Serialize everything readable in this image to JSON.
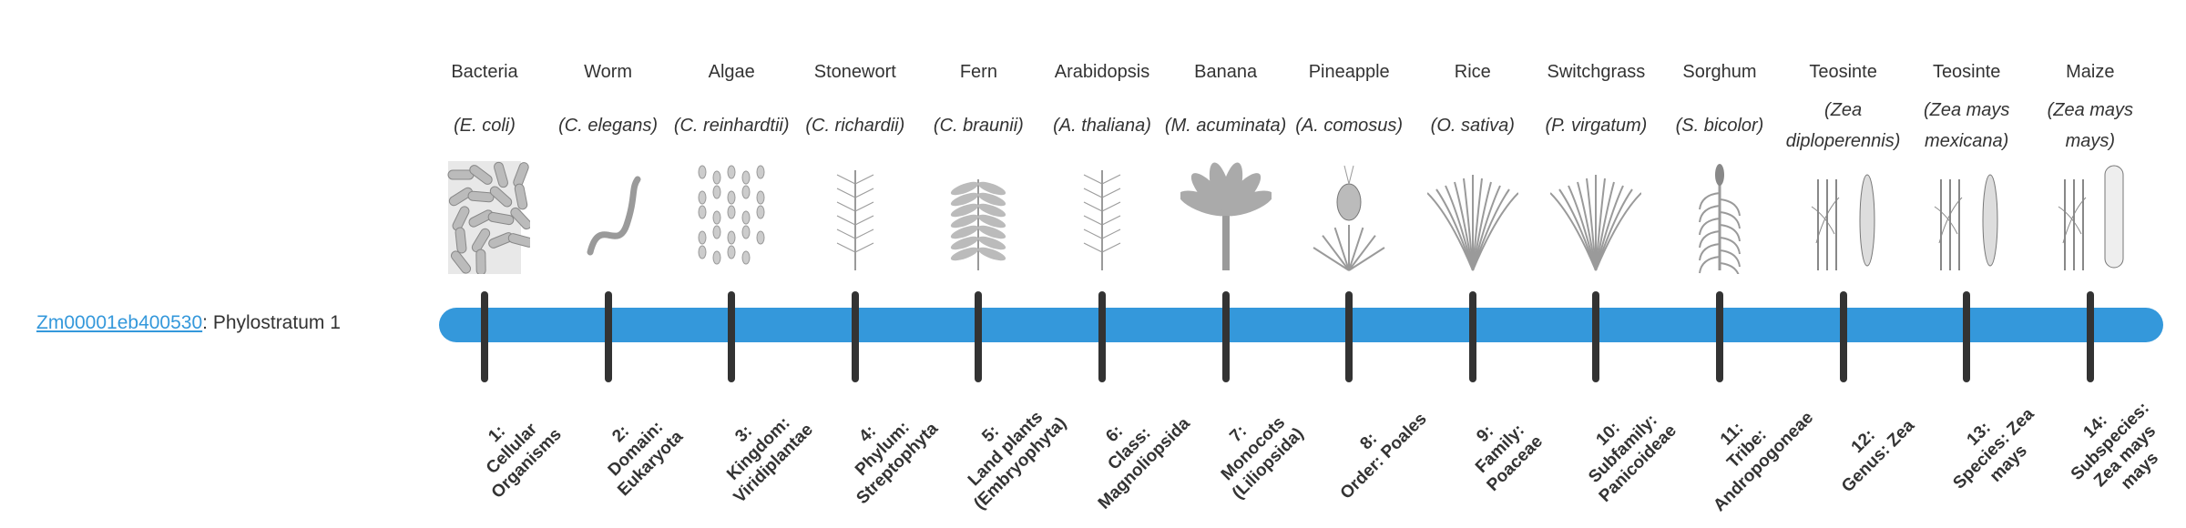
{
  "gene": {
    "id": "Zm00001eb400530",
    "separator": ": ",
    "stratum_text": "Phylostratum 1"
  },
  "colors": {
    "bar": "#3498db",
    "link": "#3498db",
    "tick": "#333333",
    "illustration": "#9a9a9a"
  },
  "strata": [
    {
      "common": "Bacteria",
      "scientific": "(E. coli)",
      "number": "1:",
      "label": "Cellular Organisms",
      "icon": "bacteria-icon"
    },
    {
      "common": "Worm",
      "scientific": "(C. elegans)",
      "number": "2:",
      "label": "Domain: Eukaryota",
      "icon": "worm-icon"
    },
    {
      "common": "Algae",
      "scientific": "(C. reinhardtii)",
      "number": "3:",
      "label": "Kingdom: Viridiplantae",
      "icon": "algae-icon"
    },
    {
      "common": "Stonewort",
      "scientific": "(C. richardii)",
      "number": "4:",
      "label": "Phylum: Streptophyta",
      "icon": "stonewort-icon"
    },
    {
      "common": "Fern",
      "scientific": "(C. braunii)",
      "number": "5:",
      "label": "Land plants (Embryophyta)",
      "icon": "fern-icon"
    },
    {
      "common": "Arabidopsis",
      "scientific": "(A. thaliana)",
      "number": "6:",
      "label": "Class: Magnoliopsida",
      "icon": "arabidopsis-icon"
    },
    {
      "common": "Banana",
      "scientific": "(M. acuminata)",
      "number": "7:",
      "label": "Monocots (Liliopsida)",
      "icon": "banana-icon"
    },
    {
      "common": "Pineapple",
      "scientific": "(A. comosus)",
      "number": "8:",
      "label": "Order: Poales",
      "icon": "pineapple-icon"
    },
    {
      "common": "Rice",
      "scientific": "(O. sativa)",
      "number": "9:",
      "label": "Family: Poaceae",
      "icon": "rice-icon"
    },
    {
      "common": "Switchgrass",
      "scientific": "(P. virgatum)",
      "number": "10:",
      "label": "Subfamily: Panicoideae",
      "icon": "switchgrass-icon"
    },
    {
      "common": "Sorghum",
      "scientific": "(S. bicolor)",
      "number": "11:",
      "label": "Tribe: Andropogoneae",
      "icon": "sorghum-icon"
    },
    {
      "common": "Teosinte",
      "scientific": "(Zea diploperennis)",
      "number": "12:",
      "label": "Genus: Zea",
      "icon": "teosinte-icon"
    },
    {
      "common": "Teosinte",
      "scientific": "(Zea mays mexicana)",
      "number": "13:",
      "label": "Species: Zea mays",
      "icon": "teosinte-icon"
    },
    {
      "common": "Maize",
      "scientific": "(Zea mays mays)",
      "number": "14:",
      "label": "Subspecies: Zea mays mays",
      "icon": "maize-icon"
    }
  ]
}
